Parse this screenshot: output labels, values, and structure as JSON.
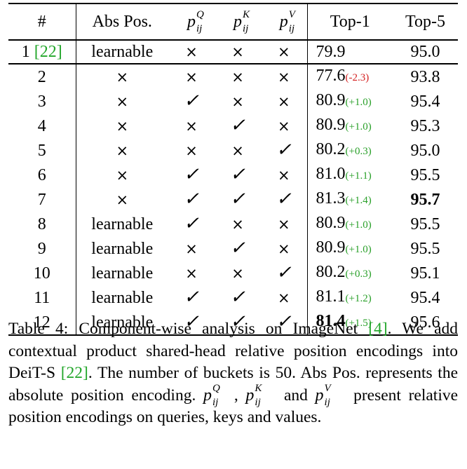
{
  "table": {
    "headers": {
      "idx": "#",
      "abs_pos": "Abs Pos.",
      "pq_base": "p",
      "pq_sup": "Q",
      "pq_sub": "ij",
      "pk_base": "p",
      "pk_sup": "K",
      "pk_sub": "ij",
      "pv_base": "p",
      "pv_sup": "V",
      "pv_sub": "ij",
      "top1": "Top-1",
      "top5": "Top-5"
    },
    "rows": [
      {
        "num": "1",
        "ref": "[22]",
        "abs": "learnable",
        "q": "×",
        "k": "×",
        "v": "×",
        "top1": "79.9",
        "delta": "",
        "top5": "95.0"
      },
      {
        "num": "2",
        "ref": "",
        "abs": "×",
        "q": "×",
        "k": "×",
        "v": "×",
        "top1": "77.6",
        "delta": "(-2.3)",
        "top5": "93.8"
      },
      {
        "num": "3",
        "ref": "",
        "abs": "×",
        "q": "✓",
        "k": "×",
        "v": "×",
        "top1": "80.9",
        "delta": "(+1.0)",
        "top5": "95.4"
      },
      {
        "num": "4",
        "ref": "",
        "abs": "×",
        "q": "×",
        "k": "✓",
        "v": "×",
        "top1": "80.9",
        "delta": "(+1.0)",
        "top5": "95.3"
      },
      {
        "num": "5",
        "ref": "",
        "abs": "×",
        "q": "×",
        "k": "×",
        "v": "✓",
        "top1": "80.2",
        "delta": "(+0.3)",
        "top5": "95.0"
      },
      {
        "num": "6",
        "ref": "",
        "abs": "×",
        "q": "✓",
        "k": "✓",
        "v": "×",
        "top1": "81.0",
        "delta": "(+1.1)",
        "top5": "95.5"
      },
      {
        "num": "7",
        "ref": "",
        "abs": "×",
        "q": "✓",
        "k": "✓",
        "v": "✓",
        "top1": "81.3",
        "delta": "(+1.4)",
        "top5": "95.7"
      },
      {
        "num": "8",
        "ref": "",
        "abs": "learnable",
        "q": "✓",
        "k": "×",
        "v": "×",
        "top1": "80.9",
        "delta": "(+1.0)",
        "top5": "95.5"
      },
      {
        "num": "9",
        "ref": "",
        "abs": "learnable",
        "q": "×",
        "k": "✓",
        "v": "×",
        "top1": "80.9",
        "delta": "(+1.0)",
        "top5": "95.5"
      },
      {
        "num": "10",
        "ref": "",
        "abs": "learnable",
        "q": "×",
        "k": "×",
        "v": "✓",
        "top1": "80.2",
        "delta": "(+0.3)",
        "top5": "95.1"
      },
      {
        "num": "11",
        "ref": "",
        "abs": "learnable",
        "q": "✓",
        "k": "✓",
        "v": "×",
        "top1": "81.1",
        "delta": "(+1.2)",
        "top5": "95.4"
      },
      {
        "num": "12",
        "ref": "",
        "abs": "learnable",
        "q": "✓",
        "k": "✓",
        "v": "✓",
        "top1": "81.4",
        "delta": "(+1.5)",
        "top5": "95.6"
      }
    ],
    "bold_cells": {
      "row7_top5": true,
      "row12_top1": true
    }
  },
  "caption": {
    "label": "Table 4:",
    "p1": "Component-wise analysis on ImageNet",
    "ref1": "[4]",
    "p2": ". We add contextual product shared-head relative position encodings into DeiT-S",
    "ref2": "[22]",
    "p3": ". The number of buckets is 50. Abs Pos. represents the absolute position encoding.",
    "p4": "and",
    "p5": "present relative position encodings on queries, keys and values."
  },
  "colors": {
    "positive_delta": "#2aa02a",
    "negative_delta": "#d42020",
    "reference_link": "#22a62a"
  }
}
